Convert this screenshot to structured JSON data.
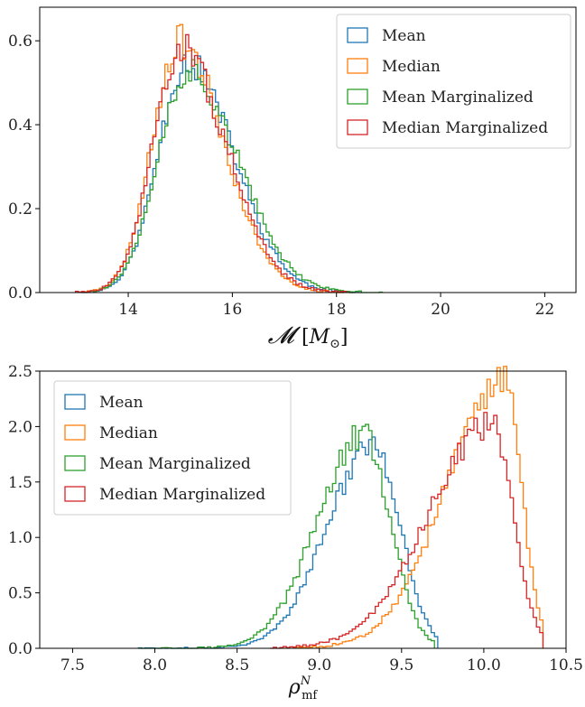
{
  "chart_data": [
    {
      "type": "histogram",
      "xlabel": "𝓜 [M⊙]",
      "xlim": [
        12.3,
        22.6
      ],
      "ylim": [
        0,
        0.68
      ],
      "xticks": [
        14,
        16,
        18,
        20,
        22
      ],
      "xtick_labels": [
        "14",
        "16",
        "18",
        "20",
        "22"
      ],
      "yticks": [
        0,
        0.2,
        0.4,
        0.6
      ],
      "ytick_labels": [
        "0.0",
        "0.2",
        "0.4",
        "0.6"
      ],
      "legend_position": "top-right",
      "series": [
        {
          "name": "Mean",
          "color": "#1f77b4",
          "mu": 15.12,
          "sigma_left": 0.55,
          "sigma_right": 0.9,
          "peak": 0.55,
          "start": 13.1,
          "end": 18.5,
          "seed": 11
        },
        {
          "name": "Median",
          "color": "#ff7f0e",
          "mu": 14.98,
          "sigma_left": 0.52,
          "sigma_right": 0.85,
          "peak": 0.6,
          "start": 13.1,
          "end": 18.3,
          "seed": 23
        },
        {
          "name": "Mean Marginalized",
          "color": "#2ca02c",
          "mu": 15.15,
          "sigma_left": 0.58,
          "sigma_right": 0.95,
          "peak": 0.53,
          "start": 13.3,
          "end": 18.9,
          "seed": 37
        },
        {
          "name": "Median Marginalized",
          "color": "#d62728",
          "mu": 15.0,
          "sigma_left": 0.53,
          "sigma_right": 0.88,
          "peak": 0.58,
          "start": 13.0,
          "end": 18.2,
          "seed": 51
        }
      ]
    },
    {
      "type": "histogram",
      "xlabel": "ρ_mf^N",
      "xlim": [
        7.3,
        10.5
      ],
      "ylim": [
        0,
        2.5
      ],
      "xticks": [
        7.5,
        8.0,
        8.5,
        9.0,
        9.5,
        10.0,
        10.5
      ],
      "xtick_labels": [
        "7.5",
        "8.0",
        "8.5",
        "9.0",
        "9.5",
        "10.0",
        "10.5"
      ],
      "yticks": [
        0,
        0.5,
        1.0,
        1.5,
        2.0,
        2.5
      ],
      "ytick_labels": [
        "0.0",
        "0.5",
        "1.0",
        "1.5",
        "2.0",
        "2.5"
      ],
      "legend_position": "top-left",
      "series": [
        {
          "name": "Mean",
          "color": "#1f77b4",
          "mu": 9.33,
          "sigma_left": 0.28,
          "sigma_right": 0.16,
          "peak": 1.84,
          "start": 7.9,
          "end": 9.72,
          "seed": 71
        },
        {
          "name": "Median",
          "color": "#ff7f0e",
          "mu": 10.12,
          "sigma_left": 0.35,
          "sigma_right": 0.11,
          "peak": 2.4,
          "start": 8.85,
          "end": 10.36,
          "seed": 83
        },
        {
          "name": "Mean Marginalized",
          "color": "#2ca02c",
          "mu": 9.27,
          "sigma_left": 0.28,
          "sigma_right": 0.16,
          "peak": 1.92,
          "start": 7.9,
          "end": 9.7,
          "seed": 97
        },
        {
          "name": "Median Marginalized",
          "color": "#d62728",
          "mu": 10.05,
          "sigma_left": 0.38,
          "sigma_right": 0.13,
          "peak": 2.02,
          "start": 8.7,
          "end": 10.35,
          "seed": 109
        }
      ]
    }
  ]
}
